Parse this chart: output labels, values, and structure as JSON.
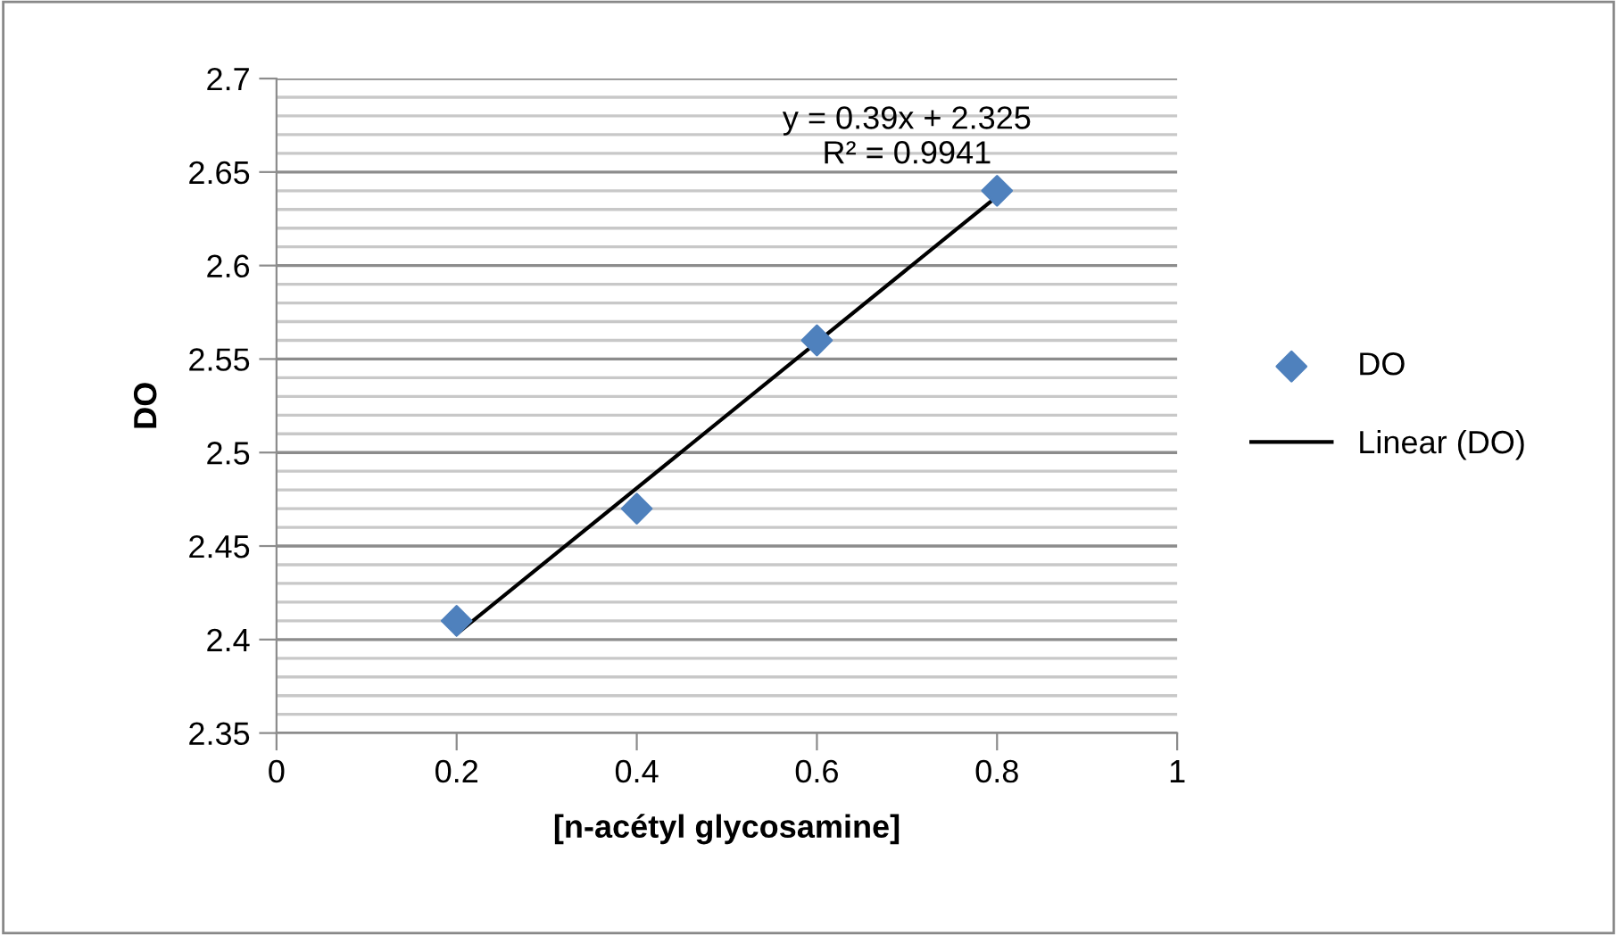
{
  "chart_data": {
    "type": "scatter",
    "xlabel": "[n-acétyl glycosamine]",
    "ylabel": "DO",
    "x": [
      0.2,
      0.4,
      0.6,
      0.8
    ],
    "series": [
      {
        "name": "DO",
        "color": "#4f81bd",
        "marker": "diamond",
        "values": [
          2.41,
          2.47,
          2.56,
          2.64
        ]
      },
      {
        "name": "Linear (DO)",
        "type": "line",
        "color": "#000000",
        "x": [
          0.2,
          0.8
        ],
        "values": [
          2.403,
          2.637
        ]
      }
    ],
    "annotations": [
      "y = 0.39x + 2.325\nR² = 0.9941"
    ],
    "xlim": [
      0,
      1
    ],
    "xticks": [
      0,
      0.2,
      0.4,
      0.6,
      0.8,
      1
    ],
    "ylim": [
      2.35,
      2.7
    ],
    "yticks": [
      2.35,
      2.4,
      2.45,
      2.5,
      2.55,
      2.6,
      2.65,
      2.7
    ],
    "grid": "y",
    "legend": "right"
  }
}
